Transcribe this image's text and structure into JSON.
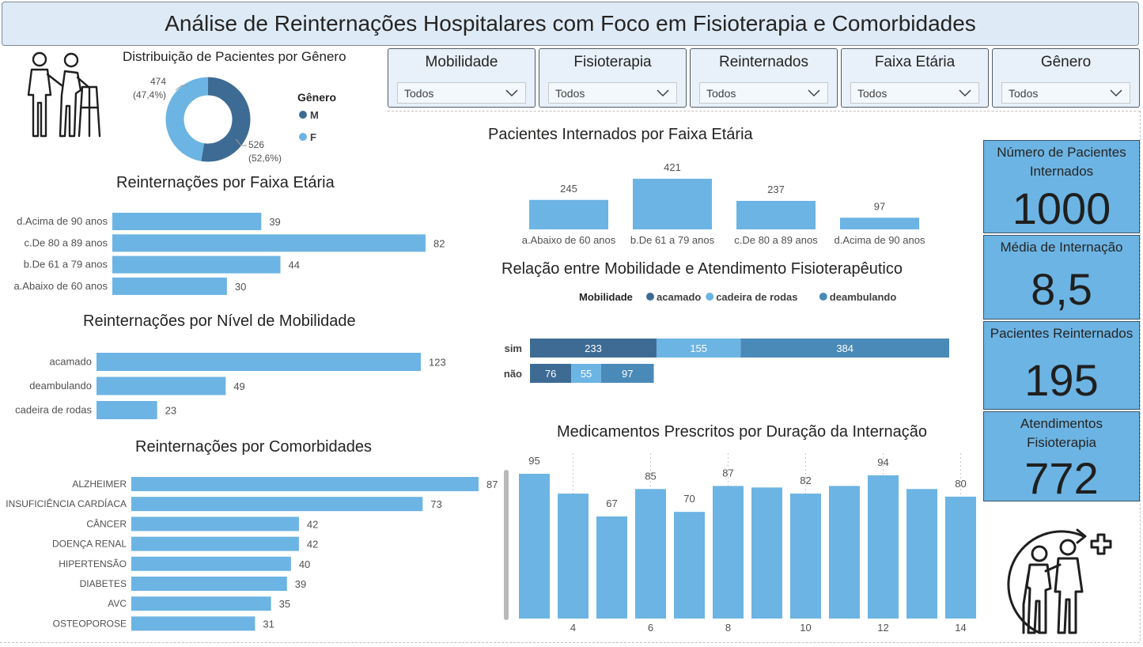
{
  "title": "Análise de Reinternações Hospitalares com Foco em Fisioterapia e Comorbidades",
  "slicers": [
    {
      "label": "Mobilidade",
      "value": "Todos"
    },
    {
      "label": "Fisioterapia",
      "value": "Todos"
    },
    {
      "label": "Reinternados",
      "value": "Todos"
    },
    {
      "label": "Faixa Etária",
      "value": "Todos"
    },
    {
      "label": "Gênero",
      "value": "Todos"
    }
  ],
  "kpis": [
    {
      "label": "Número de Pacientes Internados",
      "value": "1000"
    },
    {
      "label": "Média de Internação",
      "value": "8,5"
    },
    {
      "label": "Pacientes Reinternados",
      "value": "195"
    },
    {
      "label": "Atendimentos Fisioterapia",
      "value": "772"
    }
  ],
  "icons": {
    "top_left": "elderly-walker-caregiver-icon",
    "bottom_right": "physiotherapy-assist-icon"
  },
  "colors": {
    "bar": "#6cb4e3",
    "dark": "#3d6b94",
    "light": "#6cb4e3",
    "mid": "#4a8ab8",
    "kpi": "#6cb4e3",
    "title_bg": "#deebf7"
  },
  "chart_data": [
    {
      "id": "gender",
      "type": "pie",
      "title": "Distribuição de Pacientes por Gênero",
      "legend_title": "Gênero",
      "legend_position": "right",
      "slices": [
        {
          "name": "M",
          "value": 526,
          "label": "526",
          "pct_label": "(52,6%)",
          "color": "#3d6b94"
        },
        {
          "name": "F",
          "value": 474,
          "label": "474",
          "pct_label": "(47,4%)",
          "color": "#6cb4e3"
        }
      ]
    },
    {
      "id": "readm_age",
      "type": "bar",
      "orientation": "horizontal",
      "title": "Reinternações por Faixa Etária",
      "categories": [
        "d.Acima de 90 anos",
        "c.De 80 a 89 anos",
        "b.De 61 a 79 anos",
        "a.Abaixo de 60 anos"
      ],
      "values": [
        39,
        82,
        44,
        30
      ],
      "xlim": [
        0,
        82
      ]
    },
    {
      "id": "readm_mobility",
      "type": "bar",
      "orientation": "horizontal",
      "title": "Reinternações por Nível de Mobilidade",
      "categories": [
        "acamado",
        "deambulando",
        "cadeira de rodas"
      ],
      "values": [
        123,
        49,
        23
      ],
      "xlim": [
        0,
        123
      ]
    },
    {
      "id": "readm_comorb",
      "type": "bar",
      "orientation": "horizontal",
      "title": "Reinternações por Comorbidades",
      "categories": [
        "ALZHEIMER",
        "INSUFICIÊNCIA CARDÍACA",
        "CÂNCER",
        "DOENÇA RENAL",
        "HIPERTENSÃO",
        "DIABETES",
        "AVC",
        "OSTEOPOROSE"
      ],
      "values": [
        87,
        73,
        42,
        42,
        40,
        39,
        35,
        31
      ],
      "xlim": [
        0,
        87
      ]
    },
    {
      "id": "admitted_age",
      "type": "bar",
      "orientation": "vertical",
      "title": "Pacientes Internados por Faixa Etária",
      "categories": [
        "a.Abaixo de 60 anos",
        "b.De 61 a 79 anos",
        "c.De 80 a 89 anos",
        "d.Acima de 90 anos"
      ],
      "values": [
        245,
        421,
        237,
        97
      ],
      "ylim": [
        0,
        421
      ]
    },
    {
      "id": "mobility_physio",
      "type": "bar",
      "orientation": "horizontal",
      "stacked": true,
      "title": "Relação entre Mobilidade e Atendimento Fisioterapêutico",
      "legend_title": "Mobilidade",
      "legend_position": "top",
      "categories": [
        "sim",
        "não"
      ],
      "series": [
        {
          "name": "acamado",
          "values": [
            233,
            76
          ],
          "color": "#3d6b94"
        },
        {
          "name": "cadeira de rodas",
          "values": [
            155,
            55
          ],
          "color": "#6cb4e3"
        },
        {
          "name": "deambulando",
          "values": [
            384,
            97
          ],
          "color": "#4a8ab8"
        }
      ],
      "xlim": [
        0,
        772
      ]
    },
    {
      "id": "meds_duration",
      "type": "bar",
      "orientation": "vertical",
      "title": "Medicamentos Prescritos por Duração da Internação",
      "x": [
        3,
        4,
        5,
        6,
        7,
        8,
        9,
        10,
        11,
        12,
        13,
        14
      ],
      "values": [
        95,
        82,
        67,
        85,
        70,
        87,
        86,
        82,
        87,
        94,
        85,
        80
      ],
      "data_labels": [
        "95",
        "",
        "67",
        "85",
        "70",
        "87",
        "",
        "82",
        "",
        "94",
        "",
        "80"
      ],
      "x_tick_labels": [
        "",
        "4",
        "",
        "6",
        "",
        "8",
        "",
        "10",
        "",
        "12",
        "",
        "14"
      ],
      "ylim": [
        0,
        95
      ]
    }
  ]
}
